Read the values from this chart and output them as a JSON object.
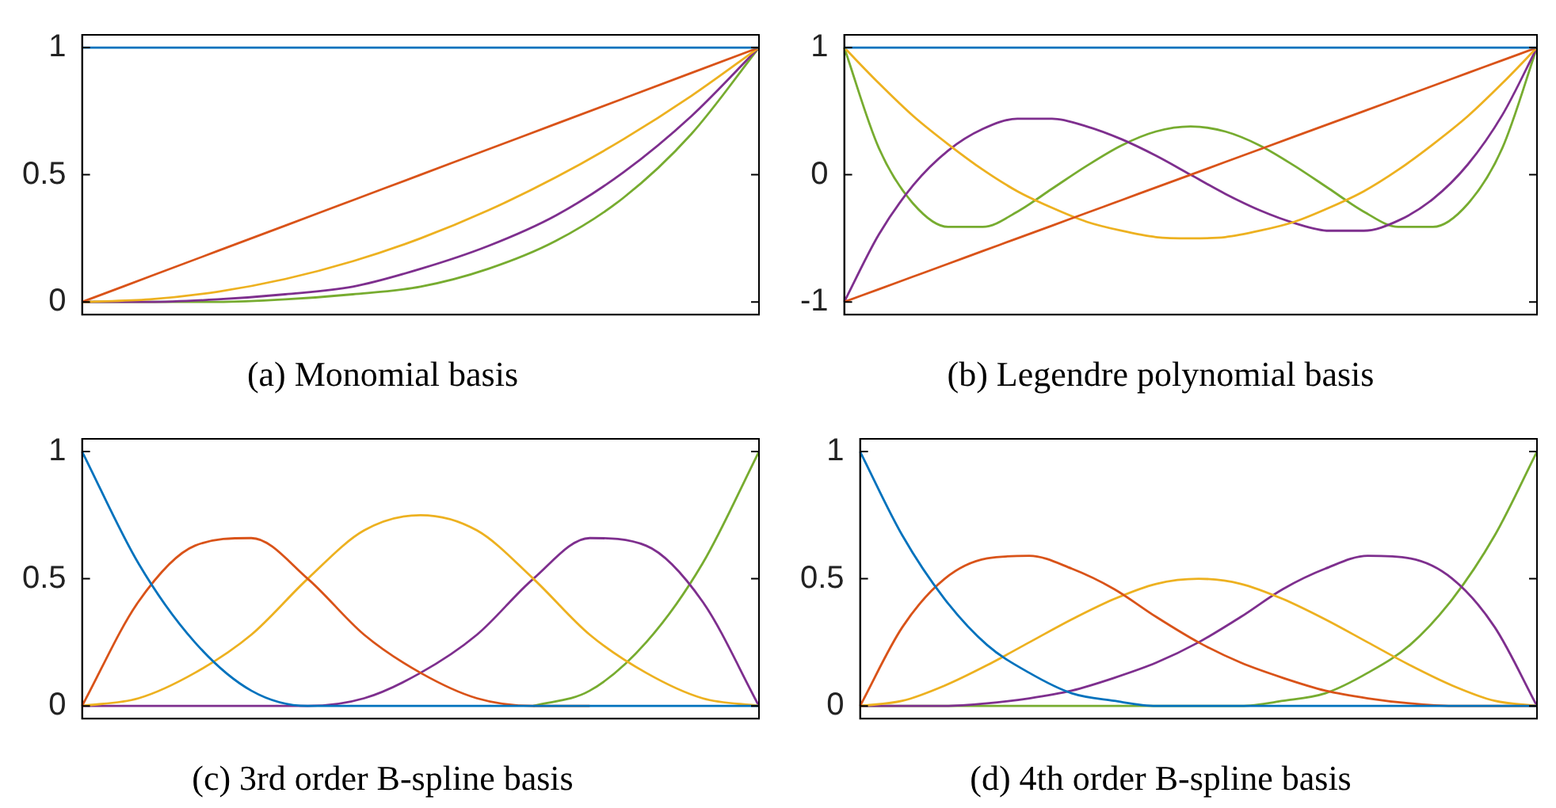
{
  "chart_data": [
    {
      "type": "line",
      "title": "(a) Monomial basis",
      "categories": [
        null,
        null,
        null,
        null,
        null,
        null,
        null,
        null,
        null,
        null,
        null
      ],
      "ylim": [
        -0.05,
        1.05
      ],
      "yticks": [
        0,
        0.5,
        1
      ],
      "tick_labels": "y",
      "grid": false,
      "series": [
        {
          "color": "#0072bd",
          "values": [
            1,
            1,
            1,
            1,
            1,
            1,
            1,
            1,
            1,
            1,
            1
          ]
        },
        {
          "color": "#d95319",
          "values": [
            0,
            0.1,
            0.2,
            0.3,
            0.4,
            0.5,
            0.6,
            0.7,
            0.8,
            0.9,
            1
          ]
        },
        {
          "color": "#edb120",
          "values": [
            0,
            0.01,
            0.04,
            0.09,
            0.16,
            0.25,
            0.36,
            0.49,
            0.64,
            0.81,
            1
          ]
        },
        {
          "color": "#7e2f8e",
          "values": [
            0,
            0,
            0.01,
            0.03,
            0.06,
            0.13,
            0.22,
            0.34,
            0.51,
            0.73,
            1
          ]
        },
        {
          "color": "#77ac30",
          "values": [
            0,
            0,
            0,
            0.01,
            0.03,
            0.06,
            0.13,
            0.24,
            0.41,
            0.66,
            1
          ]
        }
      ]
    },
    {
      "type": "line",
      "title": "(b) Legendre polynomial basis",
      "categories": [
        null,
        null,
        null,
        null,
        null,
        null,
        null,
        null,
        null,
        null,
        null,
        null,
        null,
        null,
        null,
        null,
        null,
        null,
        null,
        null,
        null
      ],
      "ylim": [
        -1.1,
        1.1
      ],
      "yticks": [
        -1,
        0,
        1
      ],
      "tick_labels": "y",
      "grid": false,
      "series": [
        {
          "color": "#0072bd",
          "values": [
            1,
            1,
            1,
            1,
            1,
            1,
            1,
            1,
            1,
            1,
            1,
            1,
            1,
            1,
            1,
            1,
            1,
            1,
            1,
            1,
            1
          ]
        },
        {
          "color": "#d95319",
          "values": [
            -1,
            -0.9,
            -0.8,
            -0.7,
            -0.6,
            -0.5,
            -0.4,
            -0.3,
            -0.2,
            -0.1,
            0,
            0.1,
            0.2,
            0.3,
            0.4,
            0.5,
            0.6,
            0.7,
            0.8,
            0.9,
            1
          ]
        },
        {
          "color": "#edb120",
          "values": [
            1,
            0.72,
            0.46,
            0.24,
            0.04,
            -0.13,
            -0.26,
            -0.37,
            -0.44,
            -0.49,
            -0.5,
            -0.49,
            -0.44,
            -0.37,
            -0.26,
            -0.13,
            0.04,
            0.24,
            0.46,
            0.72,
            1
          ]
        },
        {
          "color": "#7e2f8e",
          "values": [
            -1,
            -0.47,
            -0.08,
            0.19,
            0.36,
            0.44,
            0.44,
            0.38,
            0.28,
            0.15,
            0,
            -0.15,
            -0.28,
            -0.38,
            -0.44,
            -0.44,
            -0.36,
            -0.19,
            0.08,
            0.47,
            1
          ]
        },
        {
          "color": "#77ac30",
          "values": [
            1,
            0.21,
            -0.23,
            -0.41,
            -0.41,
            -0.29,
            -0.11,
            0.07,
            0.23,
            0.34,
            0.38,
            0.34,
            0.23,
            0.07,
            -0.11,
            -0.29,
            -0.41,
            -0.41,
            -0.23,
            0.21,
            1
          ]
        }
      ]
    },
    {
      "type": "line",
      "title": "(c) 3rd order B-spline basis",
      "categories": [
        null,
        null,
        null,
        null,
        null,
        null,
        null,
        null,
        null,
        null,
        null,
        null,
        null
      ],
      "ylim": [
        -0.05,
        1.05
      ],
      "yticks": [
        0,
        0.5,
        1
      ],
      "tick_labels": "y",
      "grid": false,
      "series": [
        {
          "color": "#0072bd",
          "values": [
            1,
            0.56,
            0.25,
            0.06,
            0,
            0,
            0,
            0,
            0,
            0,
            0,
            0,
            0
          ]
        },
        {
          "color": "#d95319",
          "values": [
            0,
            0.41,
            0.63,
            0.66,
            0.5,
            0.28,
            0.13,
            0.03,
            0,
            0,
            null,
            null,
            null
          ]
        },
        {
          "color": "#edb120",
          "values": [
            0,
            0.03,
            0.13,
            0.28,
            0.5,
            0.69,
            0.75,
            0.69,
            0.5,
            0.28,
            0.13,
            0.03,
            0
          ]
        },
        {
          "color": "#7e2f8e",
          "values": [
            0,
            0,
            0,
            0,
            0,
            0.03,
            0.13,
            0.28,
            0.5,
            0.66,
            0.63,
            0.41,
            0
          ]
        },
        {
          "color": "#77ac30",
          "values": [
            null,
            null,
            null,
            null,
            null,
            null,
            null,
            null,
            0,
            0.06,
            0.25,
            0.56,
            1
          ]
        }
      ]
    },
    {
      "type": "line",
      "title": "(d) 4th order B-spline basis",
      "categories": [
        null,
        null,
        null,
        null,
        null,
        null,
        null,
        null,
        null,
        null,
        null,
        null,
        null,
        null,
        null,
        null,
        null
      ],
      "ylim": [
        -0.05,
        1.05
      ],
      "yticks": [
        0,
        0.5,
        1
      ],
      "tick_labels": "y",
      "grid": false,
      "series": [
        {
          "color": "#0072bd",
          "values": [
            1,
            0.67,
            0.42,
            0.24,
            0.13,
            0.05,
            0.02,
            0,
            0,
            0,
            0,
            0,
            0,
            0,
            0,
            0,
            0
          ]
        },
        {
          "color": "#d95319",
          "values": [
            0,
            0.31,
            0.5,
            0.58,
            0.59,
            0.54,
            0.46,
            0.35,
            0.25,
            0.17,
            0.11,
            0.06,
            0.03,
            0.01,
            0,
            0,
            0
          ]
        },
        {
          "color": "#edb120",
          "values": [
            0,
            0.02,
            0.08,
            0.16,
            0.25,
            0.34,
            0.42,
            0.48,
            0.5,
            0.48,
            0.42,
            0.34,
            0.25,
            0.16,
            0.08,
            0.02,
            0
          ]
        },
        {
          "color": "#7e2f8e",
          "values": [
            0,
            0,
            0,
            0.01,
            0.03,
            0.06,
            0.11,
            0.17,
            0.25,
            0.35,
            0.46,
            0.54,
            0.59,
            0.58,
            0.5,
            0.31,
            0
          ]
        },
        {
          "color": "#77ac30",
          "values": [
            0,
            0,
            0,
            0,
            0,
            0,
            0,
            0,
            0,
            0,
            0.02,
            0.05,
            0.13,
            0.24,
            0.42,
            0.67,
            1
          ]
        }
      ]
    }
  ]
}
